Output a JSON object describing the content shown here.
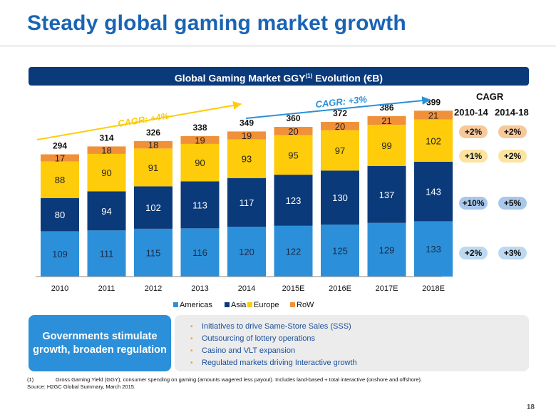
{
  "title": "Steady global gaming market growth",
  "banner": {
    "text": "Global Gaming Market GGY",
    "sup": "(1)",
    "text_end": " Evolution (€B)"
  },
  "chart_data": {
    "type": "bar",
    "stacked": true,
    "categories": [
      "2010",
      "2011",
      "2012",
      "2013",
      "2014",
      "2015E",
      "2016E",
      "2017E",
      "2018E"
    ],
    "series": [
      {
        "name": "Americas",
        "color": "#2b90d9",
        "values": [
          109,
          111,
          115,
          116,
          120,
          122,
          125,
          129,
          133
        ]
      },
      {
        "name": "Asia",
        "color": "#0b3a7a",
        "values": [
          80,
          94,
          102,
          113,
          117,
          123,
          130,
          137,
          143
        ]
      },
      {
        "name": "Europe",
        "color": "#fecc0a",
        "values": [
          88,
          90,
          91,
          90,
          93,
          95,
          97,
          99,
          102
        ]
      },
      {
        "name": "RoW",
        "color": "#f0913a",
        "values": [
          17,
          18,
          18,
          19,
          19,
          20,
          20,
          21,
          21
        ]
      }
    ],
    "totals": [
      294,
      314,
      326,
      338,
      349,
      360,
      372,
      386,
      399
    ],
    "annotations": [
      {
        "text": "CAGR: +4%",
        "color": "#fecc0a"
      },
      {
        "text": "CAGR: +3%",
        "color": "#2b90d9"
      }
    ],
    "legend_position": "bottom"
  },
  "cagr_table": {
    "heading": "CAGR",
    "columns": [
      "2010-14",
      "2014-18"
    ],
    "rows": [
      {
        "region": "RoW",
        "color": "#f7c89a",
        "values": [
          "+2%",
          "+2%"
        ]
      },
      {
        "region": "Europe",
        "color": "#fde3a0",
        "values": [
          "+1%",
          "+2%"
        ]
      },
      {
        "region": "Asia",
        "color": "#a9c7ea",
        "values": [
          "+10%",
          "+5%"
        ]
      },
      {
        "region": "Americas",
        "color": "#bcd9f1",
        "values": [
          "+2%",
          "+3%"
        ]
      }
    ]
  },
  "governments": {
    "line1": "Governments stimulate",
    "line2": "growth, broaden regulation"
  },
  "bullets": [
    "Initiatives to drive Same-Store Sales (SSS)",
    "Outsourcing of lottery operations",
    "Casino and VLT expansion",
    "Regulated markets driving Interactive growth"
  ],
  "footnote": {
    "number": "(1)",
    "text": "Gross Gaming Yield (GGY), consumer spending on gaming (amounts wagered less payout). Includes land-based + total interactive (onshore and offshore).",
    "source": "Source: H2GC Global Summary, March 2015."
  },
  "page_number": "18"
}
